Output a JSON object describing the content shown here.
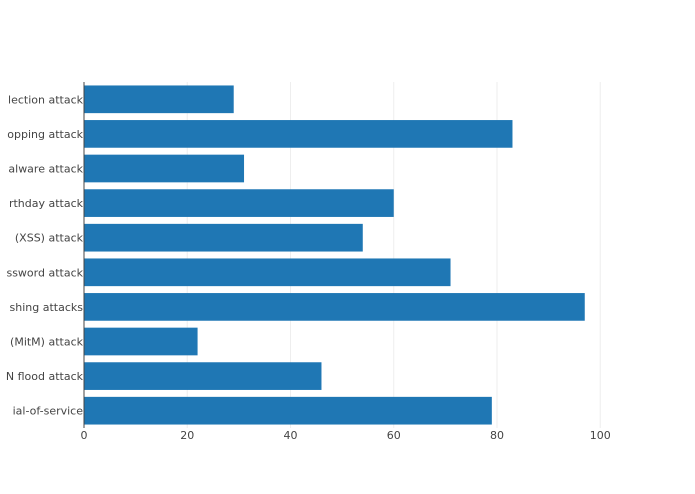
{
  "chart_data": {
    "type": "bar",
    "orientation": "horizontal",
    "categories": [
      "Denial-of-service",
      "TCP SYN flood attack",
      "Man-in-the-middle (MitM) attack",
      "Phishing attacks",
      "Password attack",
      "Cross-site scripting (XSS) attack",
      "Birthday attack",
      "Malware attack",
      "Eavesdropping attack",
      "SQL injection attack"
    ],
    "visible_labels": [
      "ial-of-service",
      "N flood attack",
      "(MitM) attack",
      "shing attacks",
      "ssword attack",
      "(XSS) attack",
      "rthday attack",
      "alware attack",
      "opping attack",
      "lection attack"
    ],
    "values": [
      79,
      46,
      22,
      97,
      71,
      54,
      60,
      31,
      83,
      29
    ],
    "xlim": [
      0,
      117
    ],
    "xticks": [
      "0",
      "20",
      "40",
      "60",
      "80",
      "100"
    ],
    "xtick_values": [
      0,
      20,
      40,
      60,
      80,
      100
    ],
    "grid": true,
    "bar_color": "#1f77b4",
    "grid_color": "#eeeeee",
    "axis_color": "#444444",
    "title": "",
    "xlabel": "",
    "ylabel": ""
  }
}
